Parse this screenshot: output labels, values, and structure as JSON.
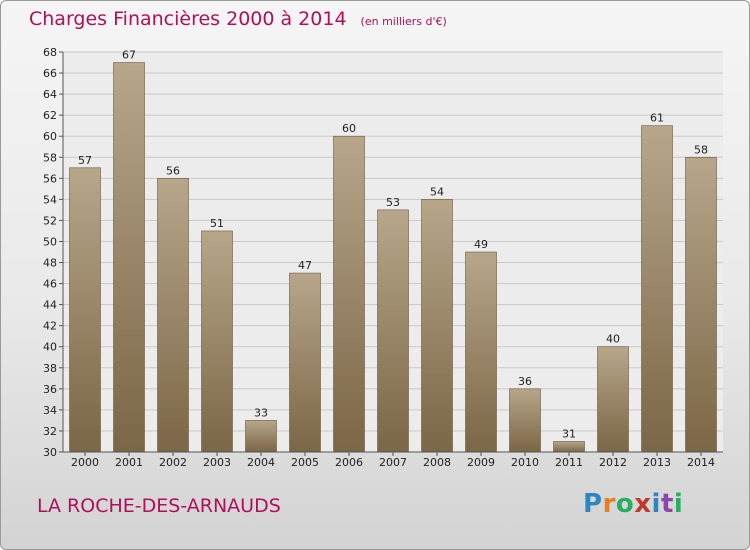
{
  "title": "Charges Financières 2000 à 2014",
  "unit": "(en milliers d'€)",
  "commune": "LA ROCHE-DES-ARNAUDS",
  "logo": {
    "letters": [
      "P",
      "r",
      "o",
      "x",
      "i",
      "t",
      "i"
    ],
    "colors": [
      "#2e86c1",
      "#e67e22",
      "#27ae60",
      "#c0392b",
      "#2e86c1",
      "#8e44ad",
      "#27ae60"
    ]
  },
  "colors": {
    "title": "#b0105a",
    "bar_light": "#b7a68a",
    "bar_dark": "#7b6646"
  },
  "chart_data": {
    "type": "bar",
    "title": "Charges Financières 2000 à 2014",
    "subtitle": "(en milliers d'€)",
    "categories": [
      "2000",
      "2001",
      "2002",
      "2003",
      "2004",
      "2005",
      "2006",
      "2007",
      "2008",
      "2009",
      "2010",
      "2011",
      "2012",
      "2013",
      "2014"
    ],
    "values": [
      57,
      67,
      56,
      51,
      33,
      47,
      60,
      53,
      54,
      49,
      36,
      31,
      40,
      61,
      58
    ],
    "ylim": [
      30,
      68
    ],
    "ytick_step": 2,
    "grid": "horizontal",
    "data_labels": true
  }
}
